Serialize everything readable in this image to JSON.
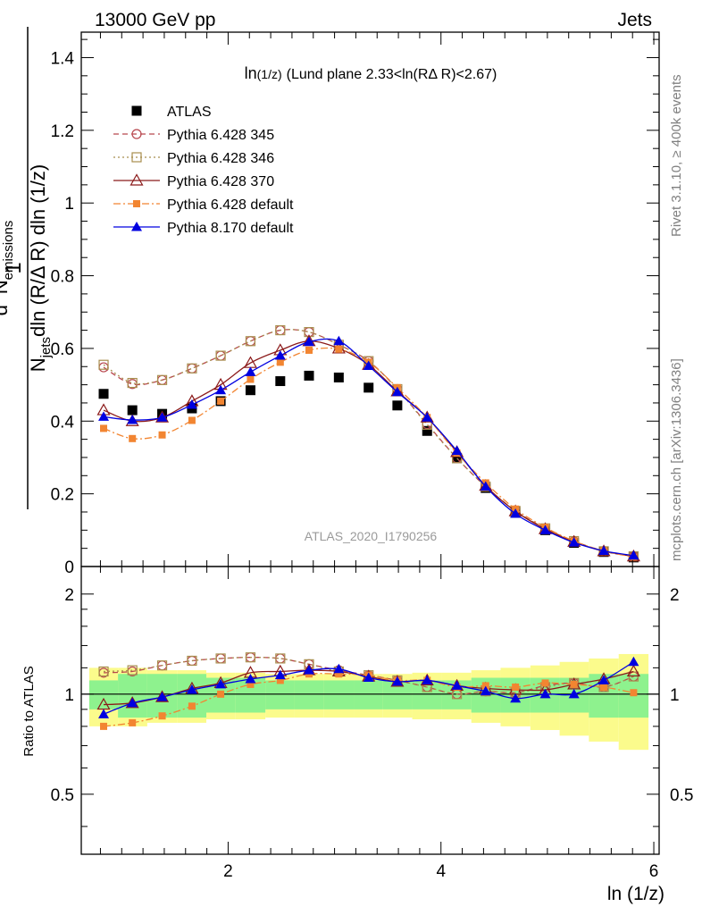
{
  "header": {
    "left": "13000 GeV pp",
    "right": "Jets"
  },
  "side_text": {
    "rivet": "Rivet 3.1.10, ≥ 400k events",
    "mcplots": "mcplots.cern.ch [arXiv:1306.3436]"
  },
  "watermark": "ATLAS_2020_I1790256",
  "plot_title": {
    "prefix": "ln",
    "sub": "(1/z)",
    "rest": "(Lund plane 2.33<ln(RΔ R)<2.67)"
  },
  "ratio_ylabel": "Ratio to ATLAS",
  "xlabel": "ln (1/z)",
  "ylabel": {
    "one": "1",
    "num_d": "d",
    "num_sup": "2",
    "num_N": "N",
    "num_sub": "emissions",
    "den_N": "N",
    "den_sub": "jets",
    "den_rest": "dln (R/Δ R) dln (1/z)"
  },
  "colors": {
    "atlas": "#000000",
    "p345": "#b8474e",
    "p346": "#a88e4e",
    "p370": "#8b1a1a",
    "p6def": "#f28531",
    "p8def": "#0000e0",
    "band_inner": "#8ef28e",
    "band_outer": "#fbfb8c"
  },
  "chart_data": {
    "type": "scatter",
    "xlim": [
      0.62,
      6.05
    ],
    "ylim": [
      0,
      1.47
    ],
    "ratio_ylim": [
      0.33,
      2.42
    ],
    "main_yticks": [
      0,
      0.2,
      0.4,
      0.6,
      0.8,
      1,
      1.2,
      1.4
    ],
    "main_ytick_labels": [
      "0",
      "0.2",
      "0.4",
      "0.6",
      "0.8",
      "1",
      "1.2",
      "1.4"
    ],
    "ratio_yticks": [
      0.5,
      1,
      2
    ],
    "ratio_ytick_labels": [
      "0.5",
      "1",
      "2"
    ],
    "xticks": [
      2,
      4,
      6
    ],
    "xtick_labels": [
      "2",
      "4",
      "6"
    ],
    "x": [
      0.83,
      1.1,
      1.38,
      1.66,
      1.93,
      2.21,
      2.49,
      2.76,
      3.04,
      3.32,
      3.59,
      3.87,
      4.15,
      4.42,
      4.7,
      4.98,
      5.25,
      5.53,
      5.81
    ],
    "band_inner": [
      0.1,
      0.15,
      0.15,
      0.15,
      0.12,
      0.12,
      0.1,
      0.1,
      0.1,
      0.1,
      0.1,
      0.1,
      0.1,
      0.12,
      0.12,
      0.12,
      0.12,
      0.15,
      0.15
    ],
    "band_outer": [
      0.2,
      0.2,
      0.18,
      0.18,
      0.16,
      0.16,
      0.15,
      0.15,
      0.15,
      0.15,
      0.15,
      0.16,
      0.16,
      0.18,
      0.2,
      0.22,
      0.25,
      0.28,
      0.32
    ],
    "series": [
      {
        "name": "ATLAS",
        "key": "atlas",
        "marker": "square-filled",
        "line": "none",
        "y": [
          0.475,
          0.43,
          0.42,
          0.435,
          0.455,
          0.485,
          0.51,
          0.525,
          0.52,
          0.492,
          0.443,
          0.373,
          0.298,
          0.216,
          0.15,
          0.1,
          0.065,
          0.04,
          0.025
        ]
      },
      {
        "name": "Pythia 6.428 345",
        "key": "p345",
        "marker": "circle-open",
        "line": "dashed",
        "y": [
          0.548,
          0.502,
          0.513,
          0.545,
          0.58,
          0.62,
          0.65,
          0.645,
          0.61,
          0.565,
          0.488,
          0.392,
          0.298,
          0.22,
          0.153,
          0.105,
          0.07,
          0.042,
          0.028
        ],
        "ratio": [
          1.16,
          1.17,
          1.22,
          1.26,
          1.28,
          1.29,
          1.28,
          1.23,
          1.18,
          1.14,
          1.1,
          1.05,
          1.0,
          1.02,
          1.01,
          1.06,
          1.08,
          1.05,
          1.13
        ]
      },
      {
        "name": "Pythia 6.428 346",
        "key": "p346",
        "marker": "square-open",
        "line": "dotted",
        "y": [
          0.555,
          0.505,
          0.513,
          0.545,
          0.58,
          0.62,
          0.65,
          0.645,
          0.61,
          0.565,
          0.488,
          0.39,
          0.298,
          0.22,
          0.153,
          0.105,
          0.07,
          0.042,
          0.028
        ],
        "ratio": [
          1.17,
          1.18,
          1.22,
          1.26,
          1.28,
          1.29,
          1.28,
          1.23,
          1.17,
          1.14,
          1.1,
          1.05,
          1.0,
          1.02,
          1.01,
          1.05,
          1.08,
          1.05,
          1.13
        ]
      },
      {
        "name": "Pythia 6.428 370",
        "key": "p370",
        "marker": "triangle-open",
        "line": "solid",
        "y": [
          0.43,
          0.4,
          0.41,
          0.455,
          0.5,
          0.56,
          0.595,
          0.62,
          0.6,
          0.555,
          0.482,
          0.41,
          0.315,
          0.222,
          0.152,
          0.103,
          0.068,
          0.042,
          0.028
        ],
        "ratio": [
          0.93,
          0.94,
          0.98,
          1.04,
          1.08,
          1.16,
          1.17,
          1.18,
          1.17,
          1.13,
          1.09,
          1.1,
          1.06,
          1.04,
          1.03,
          1.03,
          1.07,
          1.11,
          1.17
        ]
      },
      {
        "name": "Pythia 6.428 default",
        "key": "p6def",
        "marker": "square-small-filled",
        "line": "dashdot",
        "y": [
          0.38,
          0.352,
          0.362,
          0.402,
          0.455,
          0.515,
          0.562,
          0.595,
          0.598,
          0.562,
          0.492,
          0.41,
          0.312,
          0.23,
          0.158,
          0.108,
          0.07,
          0.043,
          0.026
        ],
        "ratio": [
          0.8,
          0.82,
          0.86,
          0.92,
          1.0,
          1.07,
          1.1,
          1.15,
          1.15,
          1.14,
          1.1,
          1.1,
          1.05,
          1.06,
          1.05,
          1.08,
          1.07,
          1.05,
          1.01
        ]
      },
      {
        "name": "Pythia 8.170 default",
        "key": "p8def",
        "marker": "triangle-filled",
        "line": "solid",
        "y": [
          0.412,
          0.403,
          0.41,
          0.445,
          0.485,
          0.535,
          0.58,
          0.618,
          0.62,
          0.552,
          0.48,
          0.41,
          0.318,
          0.22,
          0.145,
          0.1,
          0.066,
          0.043,
          0.03
        ],
        "ratio": [
          0.87,
          0.94,
          0.98,
          1.03,
          1.07,
          1.11,
          1.14,
          1.18,
          1.19,
          1.12,
          1.09,
          1.1,
          1.06,
          1.02,
          0.97,
          1.0,
          1.0,
          1.1,
          1.25
        ]
      }
    ]
  }
}
